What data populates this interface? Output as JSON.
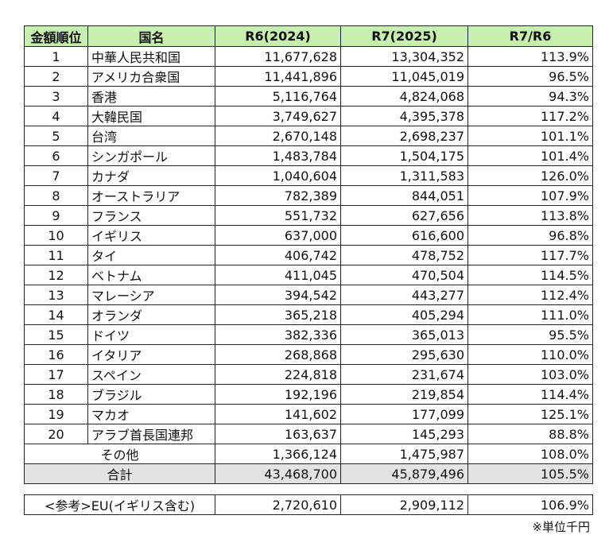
{
  "header": {
    "rank": "金額順位",
    "country": "国名",
    "r6": "R6(2024)",
    "r7": "R7(2025)",
    "ratio": "R7/R6"
  },
  "rows": [
    {
      "rank": "1",
      "country": "中華人民共和国",
      "r6": "11,677,628",
      "r7": "13,304,352",
      "ratio": "113.9%"
    },
    {
      "rank": "2",
      "country": "アメリカ合衆国",
      "r6": "11,441,896",
      "r7": "11,045,019",
      "ratio": "96.5%"
    },
    {
      "rank": "3",
      "country": "香港",
      "r6": "5,116,764",
      "r7": "4,824,068",
      "ratio": "94.3%"
    },
    {
      "rank": "4",
      "country": "大韓民国",
      "r6": "3,749,627",
      "r7": "4,395,378",
      "ratio": "117.2%"
    },
    {
      "rank": "5",
      "country": "台湾",
      "r6": "2,670,148",
      "r7": "2,698,237",
      "ratio": "101.1%"
    },
    {
      "rank": "6",
      "country": "シンガポール",
      "r6": "1,483,784",
      "r7": "1,504,175",
      "ratio": "101.4%"
    },
    {
      "rank": "7",
      "country": "カナダ",
      "r6": "1,040,604",
      "r7": "1,311,583",
      "ratio": "126.0%"
    },
    {
      "rank": "8",
      "country": "オーストラリア",
      "r6": "782,389",
      "r7": "844,051",
      "ratio": "107.9%"
    },
    {
      "rank": "9",
      "country": "フランス",
      "r6": "551,732",
      "r7": "627,656",
      "ratio": "113.8%"
    },
    {
      "rank": "10",
      "country": "イギリス",
      "r6": "637,000",
      "r7": "616,600",
      "ratio": "96.8%"
    },
    {
      "rank": "11",
      "country": "タイ",
      "r6": "406,742",
      "r7": "478,752",
      "ratio": "117.7%"
    },
    {
      "rank": "12",
      "country": "ベトナム",
      "r6": "411,045",
      "r7": "470,504",
      "ratio": "114.5%"
    },
    {
      "rank": "13",
      "country": "マレーシア",
      "r6": "394,542",
      "r7": "443,277",
      "ratio": "112.4%"
    },
    {
      "rank": "14",
      "country": "オランダ",
      "r6": "365,218",
      "r7": "405,294",
      "ratio": "111.0%"
    },
    {
      "rank": "15",
      "country": "ドイツ",
      "r6": "382,336",
      "r7": "365,013",
      "ratio": "95.5%"
    },
    {
      "rank": "16",
      "country": "イタリア",
      "r6": "268,868",
      "r7": "295,630",
      "ratio": "110.0%"
    },
    {
      "rank": "17",
      "country": "スペイン",
      "r6": "224,818",
      "r7": "231,674",
      "ratio": "103.0%"
    },
    {
      "rank": "18",
      "country": "ブラジル",
      "r6": "192,196",
      "r7": "219,854",
      "ratio": "114.4%"
    },
    {
      "rank": "19",
      "country": "マカオ",
      "r6": "141,602",
      "r7": "177,099",
      "ratio": "125.1%"
    },
    {
      "rank": "20",
      "country": "アラブ首長国連邦",
      "r6": "163,637",
      "r7": "145,293",
      "ratio": "88.8%"
    }
  ],
  "other": {
    "label": "その他",
    "r6": "1,366,124",
    "r7": "1,475,987",
    "ratio": "108.0%"
  },
  "total": {
    "label": "合計",
    "r6": "43,468,700",
    "r7": "45,879,496",
    "ratio": "105.5%"
  },
  "eu": {
    "label": "<参考>EU(イギリス含む)",
    "r6": "2,720,610",
    "r7": "2,909,112",
    "ratio": "106.9%"
  },
  "note": "※単位千円",
  "colors": {
    "header_bg": "#c6efb0",
    "total_bg": "#e3e3e3"
  }
}
